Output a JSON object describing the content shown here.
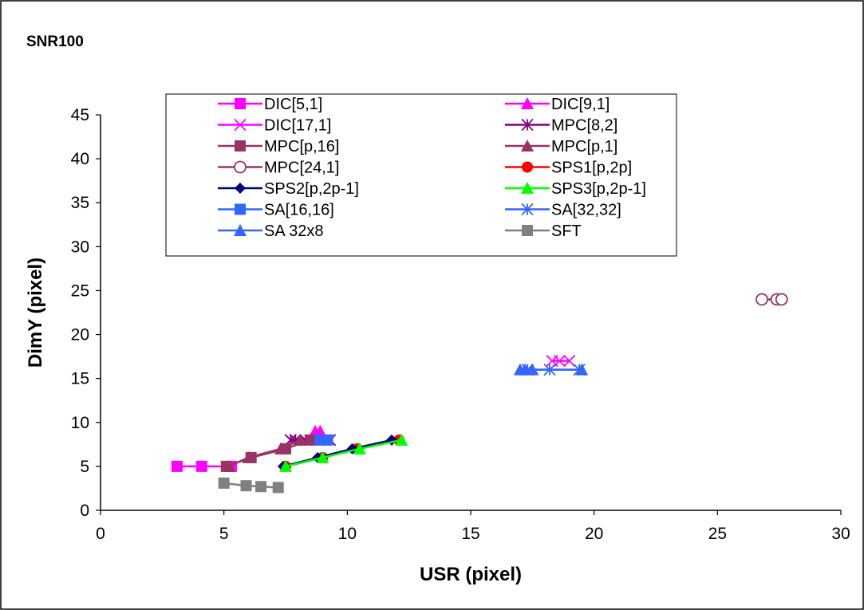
{
  "chart_data": {
    "type": "scatter",
    "title": "SNR100",
    "xlabel": "USR (pixel)",
    "ylabel": "DimY (pixel)",
    "xlim": [
      0,
      30
    ],
    "ylim": [
      0,
      45
    ],
    "xticks": [
      0,
      5,
      10,
      15,
      20,
      25,
      30
    ],
    "yticks": [
      0,
      5,
      10,
      15,
      20,
      25,
      30,
      35,
      40,
      45
    ],
    "grid": false,
    "legend_placement": "top-center",
    "series": [
      {
        "name": "DIC[5,1]",
        "color": "#ff00ff",
        "marker": "square",
        "points": [
          [
            3.1,
            5
          ],
          [
            4.1,
            5
          ],
          [
            5.3,
            5
          ]
        ]
      },
      {
        "name": "DIC[9,1]",
        "color": "#ff00ff",
        "marker": "triangle",
        "points": [
          [
            8.7,
            9
          ],
          [
            8.9,
            9
          ]
        ]
      },
      {
        "name": "DIC[17,1]",
        "color": "#ff00ff",
        "marker": "x",
        "points": [
          [
            18.3,
            17
          ],
          [
            18.6,
            17
          ],
          [
            19.0,
            17
          ]
        ]
      },
      {
        "name": "MPC[8,2]",
        "color": "#800080",
        "marker": "star",
        "points": [
          [
            7.7,
            8
          ],
          [
            7.9,
            8
          ],
          [
            8.3,
            8
          ],
          [
            9.3,
            8
          ]
        ]
      },
      {
        "name": "MPC[p,16]",
        "color": "#993366",
        "marker": "square",
        "points": [
          [
            5.1,
            5
          ],
          [
            6.1,
            6
          ],
          [
            7.5,
            7
          ],
          [
            8.5,
            8
          ]
        ]
      },
      {
        "name": "MPC[p,1]",
        "color": "#993366",
        "marker": "triangle",
        "points": [
          [
            5.2,
            5
          ],
          [
            6.0,
            6
          ],
          [
            7.3,
            7
          ],
          [
            8.1,
            8
          ]
        ]
      },
      {
        "name": "MPC[24,1]",
        "color": "#993366",
        "marker": "circle-open",
        "points": [
          [
            26.8,
            24
          ],
          [
            27.4,
            24
          ],
          [
            27.6,
            24
          ]
        ]
      },
      {
        "name": "SPS1[p,2p]",
        "color": "#ff0000",
        "marker": "circle",
        "points": [
          [
            7.5,
            5
          ],
          [
            9.0,
            6
          ],
          [
            10.4,
            7
          ],
          [
            12.1,
            8
          ]
        ]
      },
      {
        "name": "SPS2[p,2p-1]",
        "color": "#000080",
        "marker": "diamond",
        "points": [
          [
            7.4,
            5
          ],
          [
            8.8,
            6
          ],
          [
            10.2,
            7
          ],
          [
            11.8,
            8
          ]
        ]
      },
      {
        "name": "SPS3[p,2p-1]",
        "color": "#00ff00",
        "marker": "triangle",
        "points": [
          [
            7.5,
            5
          ],
          [
            9.0,
            6
          ],
          [
            10.5,
            7
          ],
          [
            12.2,
            8
          ]
        ]
      },
      {
        "name": "SA[16,16]",
        "color": "#3366ff",
        "marker": "square",
        "points": [
          [
            8.9,
            8
          ],
          [
            9.2,
            8
          ]
        ]
      },
      {
        "name": "SA[32,32]",
        "color": "#3366ff",
        "marker": "star",
        "points": [
          [
            17.3,
            16
          ],
          [
            18.2,
            16
          ],
          [
            19.4,
            16
          ]
        ]
      },
      {
        "name": "SA 32x8",
        "color": "#3366ff",
        "marker": "triangle",
        "points": [
          [
            17.0,
            16
          ],
          [
            17.2,
            16
          ],
          [
            17.5,
            16
          ],
          [
            19.5,
            16
          ]
        ]
      },
      {
        "name": "SFT",
        "color": "#808080",
        "marker": "square",
        "points": [
          [
            5.0,
            3.1
          ],
          [
            5.9,
            2.8
          ],
          [
            6.5,
            2.7
          ],
          [
            7.2,
            2.6
          ]
        ]
      }
    ]
  }
}
